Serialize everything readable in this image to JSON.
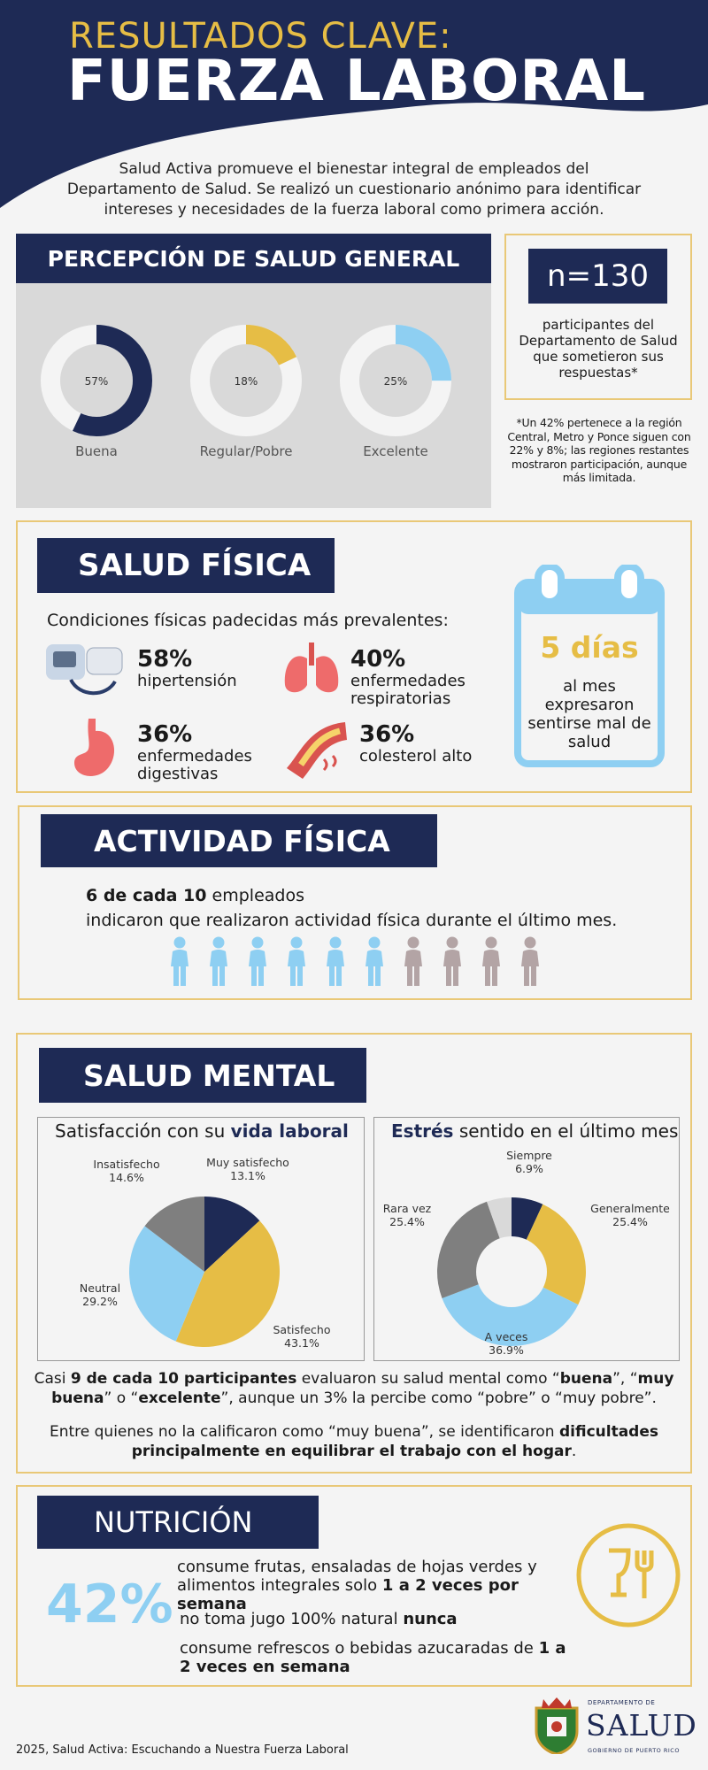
{
  "header": {
    "subtitle": "RESULTADOS CLAVE:",
    "title": "FUERZA LABORAL",
    "intro": "Salud Activa promueve el bienestar integral de empleados del Departamento de Salud. Se realizó un cuestionario anónimo para identificar intereses y necesidades de la fuerza laboral como primera acción."
  },
  "percepcion": {
    "heading": "PERCEPCIÓN DE SALUD GENERAL",
    "donuts": [
      {
        "pct": "57%",
        "value": 57,
        "label": "Buena",
        "color": "#1e2a55"
      },
      {
        "pct": "18%",
        "value": 18,
        "label": "Regular/Pobre",
        "color": "#e6bd45"
      },
      {
        "pct": "25%",
        "value": 25,
        "label": "Excelente",
        "color": "#8ecff2"
      }
    ]
  },
  "participants": {
    "n": "n=130",
    "desc": "participantes del Departamento de Salud que sometieron sus respuestas*",
    "note": "*Un 42% pertenece a la región Central, Metro y Ponce siguen con 22% y 8%; las regiones restantes mostraron participación, aunque más limitada."
  },
  "fisica": {
    "heading": "SALUD FÍSICA",
    "subheading": "Condiciones físicas padecidas más prevalentes:",
    "items": [
      {
        "pct": "58%",
        "label": "hipertensión",
        "icon": "blood-pressure-monitor-icon"
      },
      {
        "pct": "40%",
        "label": "enfermedades respiratorias",
        "icon": "lungs-icon"
      },
      {
        "pct": "36%",
        "label": "enfermedades digestivas",
        "icon": "stomach-icon"
      },
      {
        "pct": "36%",
        "label": "colesterol alto",
        "icon": "artery-icon"
      }
    ],
    "days": "5 días",
    "days_desc": "al mes expresaron sentirse mal de salud"
  },
  "actividad": {
    "heading": "ACTIVIDAD FÍSICA",
    "bold": "6 de cada 10",
    "line1": " empleados",
    "line2": "indicaron que realizaron actividad física durante el último mes.",
    "active": 6,
    "total": 10,
    "color_active": "#8ecff2",
    "color_inactive": "#b3a4a5"
  },
  "mental": {
    "heading": "SALUD MENTAL",
    "sat_title_plain": "Satisfacción con su ",
    "sat_title_bold": "vida laboral",
    "stress_title_bold": "Estrés",
    "stress_title_plain": " sentido en el último mes",
    "para1_a": "Casi ",
    "para1_b": "9 de cada 10 participantes",
    "para1_c": " evaluaron su salud mental como “",
    "para1_d": "buena",
    "para1_e": "”, “",
    "para1_f": "muy buena",
    "para1_g": "” o “",
    "para1_h": "excelente",
    "para1_i": "”, aunque un 3% la percibe como “pobre” o “muy pobre”.",
    "para2_a": "Entre quienes no la calificaron como “muy buena”, se identificaron ",
    "para2_b": "dificultades principalmente en equilibrar el trabajo con el hogar",
    "para2_c": "."
  },
  "chart_data": [
    {
      "type": "pie",
      "title": "Satisfacción con su vida laboral",
      "labels": [
        "Muy satisfecho",
        "Satisfecho",
        "Neutral",
        "Insatisfecho"
      ],
      "values": [
        13.1,
        43.1,
        29.2,
        14.6
      ],
      "display": [
        "13.1%",
        "43.1%",
        "29.2%",
        "14.6%"
      ],
      "colors": [
        "#1e2a55",
        "#e6bd45",
        "#8ecff2",
        "#7f7f7f"
      ]
    },
    {
      "type": "pie",
      "title": "Estrés sentido en el último mes",
      "labels": [
        "Siempre",
        "Generalmente",
        "A veces",
        "Rara vez",
        ""
      ],
      "values": [
        6.9,
        25.4,
        36.9,
        25.4,
        5.4
      ],
      "display": [
        "6.9%",
        "25.4%",
        "36.9%",
        "25.4%",
        ""
      ],
      "colors": [
        "#1e2a55",
        "#e6bd45",
        "#8ecff2",
        "#7f7f7f",
        "#d9d9d9"
      ]
    }
  ],
  "nutricion": {
    "heading": "NUTRICIÓN",
    "pct": "42%",
    "l1_a": "consume frutas, ensaladas de hojas verdes y alimentos integrales solo ",
    "l1_b": "1 a 2 veces por semana",
    "l2_a": "no toma jugo 100% natural ",
    "l2_b": "nunca",
    "l3_a": "consume refrescos o bebidas azucaradas de ",
    "l3_b": "1 a 2 veces en semana"
  },
  "footer": {
    "credit": "2025, Salud Activa: Escuchando a Nuestra Fuerza Laboral",
    "logo_top": "DEPARTAMENTO DE",
    "logo_main": "SALUD",
    "logo_bottom": "GOBIERNO DE PUERTO RICO"
  }
}
